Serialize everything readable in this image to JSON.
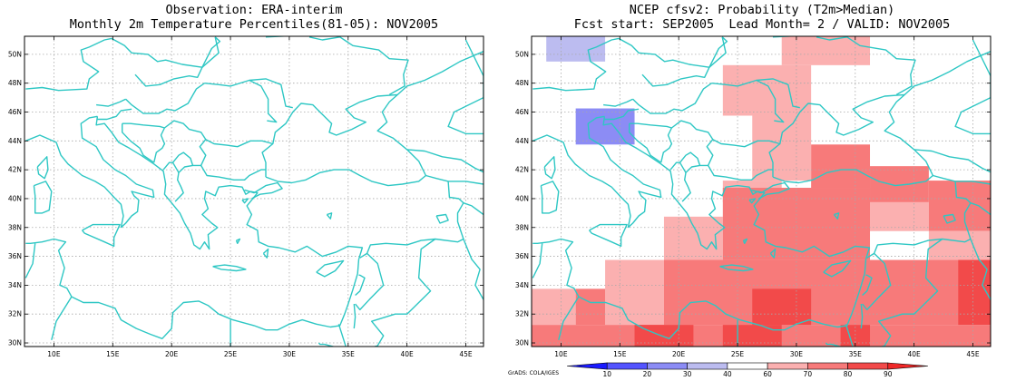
{
  "left_panel": {
    "title_line1": "Observation: ERA-interim",
    "title_line2": "Monthly 2m Temperature Percentiles(81-05): NOV2005"
  },
  "right_panel": {
    "title_line1": "NCEP cfsv2: Probability (T2m>Median)",
    "title_line2": "Fcst start: SEP2005  Lead Month= 2 / VALID: NOV2005"
  },
  "axes": {
    "lat_labels": [
      "30N",
      "32N",
      "34N",
      "36N",
      "38N",
      "40N",
      "42N",
      "44N",
      "46N",
      "48N",
      "50N"
    ],
    "lon_labels": [
      "10E",
      "15E",
      "20E",
      "25E",
      "30E",
      "35E",
      "40E",
      "45E"
    ],
    "lon_range": [
      7.5,
      46.5
    ],
    "lat_range": [
      29.75,
      51.25
    ]
  },
  "colorbar": {
    "labels": [
      "10",
      "20",
      "30",
      "40",
      "60",
      "70",
      "80",
      "90"
    ],
    "colors": [
      "#1a1aff",
      "#5454ff",
      "#8c8cf5",
      "#bcbcf0",
      "#ffffff",
      "#fbb0b0",
      "#f77a7a",
      "#f24a4a",
      "#ef2828"
    ]
  },
  "credit": "GrADS: COLA/IGES",
  "colors": {
    "coast": "#2ec7c4",
    "grid": "#a8a8a8"
  },
  "probability_grid": {
    "blocks": [
      {
        "lon": [
          8.75,
          13.75
        ],
        "lat": [
          49.5,
          51.5
        ],
        "level": "30-40"
      },
      {
        "lon": [
          11.25,
          16.25
        ],
        "lat": [
          43.75,
          46.25
        ],
        "level": "20-30"
      },
      {
        "lon": [
          28.75,
          36.25
        ],
        "lat": [
          49.25,
          51.25
        ],
        "level": "60-70"
      },
      {
        "lon": [
          23.75,
          31.25
        ],
        "lat": [
          45.75,
          49.25
        ],
        "level": "60-70"
      },
      {
        "lon": [
          26.25,
          31.25
        ],
        "lat": [
          41.25,
          45.75
        ],
        "level": "60-70"
      },
      {
        "lon": [
          23.75,
          28.75
        ],
        "lat": [
          39.75,
          41.25
        ],
        "level": "60-70"
      },
      {
        "lon": [
          31.25,
          36.25
        ],
        "lat": [
          40.75,
          43.75
        ],
        "level": "70-80"
      },
      {
        "lon": [
          36.25,
          41.25
        ],
        "lat": [
          39.75,
          42.25
        ],
        "level": "70-80"
      },
      {
        "lon": [
          36.25,
          41.25
        ],
        "lat": [
          37.75,
          39.75
        ],
        "level": "60-70"
      },
      {
        "lon": [
          41.25,
          46.5
        ],
        "lat": [
          37.75,
          41.25
        ],
        "level": "70-80"
      },
      {
        "lon": [
          18.75,
          23.75
        ],
        "lat": [
          35.75,
          38.75
        ],
        "level": "60-70"
      },
      {
        "lon": [
          23.75,
          36.25
        ],
        "lat": [
          35.75,
          40.75
        ],
        "level": "70-80"
      },
      {
        "lon": [
          41.25,
          46.5
        ],
        "lat": [
          35.75,
          37.75
        ],
        "level": "60-70"
      },
      {
        "lon": [
          13.75,
          18.75
        ],
        "lat": [
          31.25,
          35.75
        ],
        "level": "60-70"
      },
      {
        "lon": [
          18.75,
          23.75
        ],
        "lat": [
          33.75,
          35.75
        ],
        "level": "60-70"
      },
      {
        "lon": [
          18.75,
          46.5
        ],
        "lat": [
          31.25,
          35.75
        ],
        "level": "70-80"
      },
      {
        "lon": [
          43.75,
          46.5
        ],
        "lat": [
          31.25,
          35.75
        ],
        "level": "80-90"
      },
      {
        "lon": [
          7.5,
          11.25
        ],
        "lat": [
          31.25,
          33.75
        ],
        "level": "60-70"
      },
      {
        "lon": [
          11.25,
          13.75
        ],
        "lat": [
          31.25,
          33.75
        ],
        "level": "70-80"
      },
      {
        "lon": [
          7.5,
          46.5
        ],
        "lat": [
          29.75,
          31.25
        ],
        "level": "70-80"
      },
      {
        "lon": [
          16.25,
          21.25
        ],
        "lat": [
          29.75,
          31.25
        ],
        "level": "80-90"
      },
      {
        "lon": [
          26.25,
          31.25
        ],
        "lat": [
          31.25,
          33.75
        ],
        "level": "80-90"
      },
      {
        "lon": [
          23.75,
          28.75
        ],
        "lat": [
          29.75,
          31.25
        ],
        "level": "80-90"
      },
      {
        "lon": [
          33.75,
          36.25
        ],
        "lat": [
          29.75,
          31.25
        ],
        "level": "80-90"
      }
    ]
  }
}
